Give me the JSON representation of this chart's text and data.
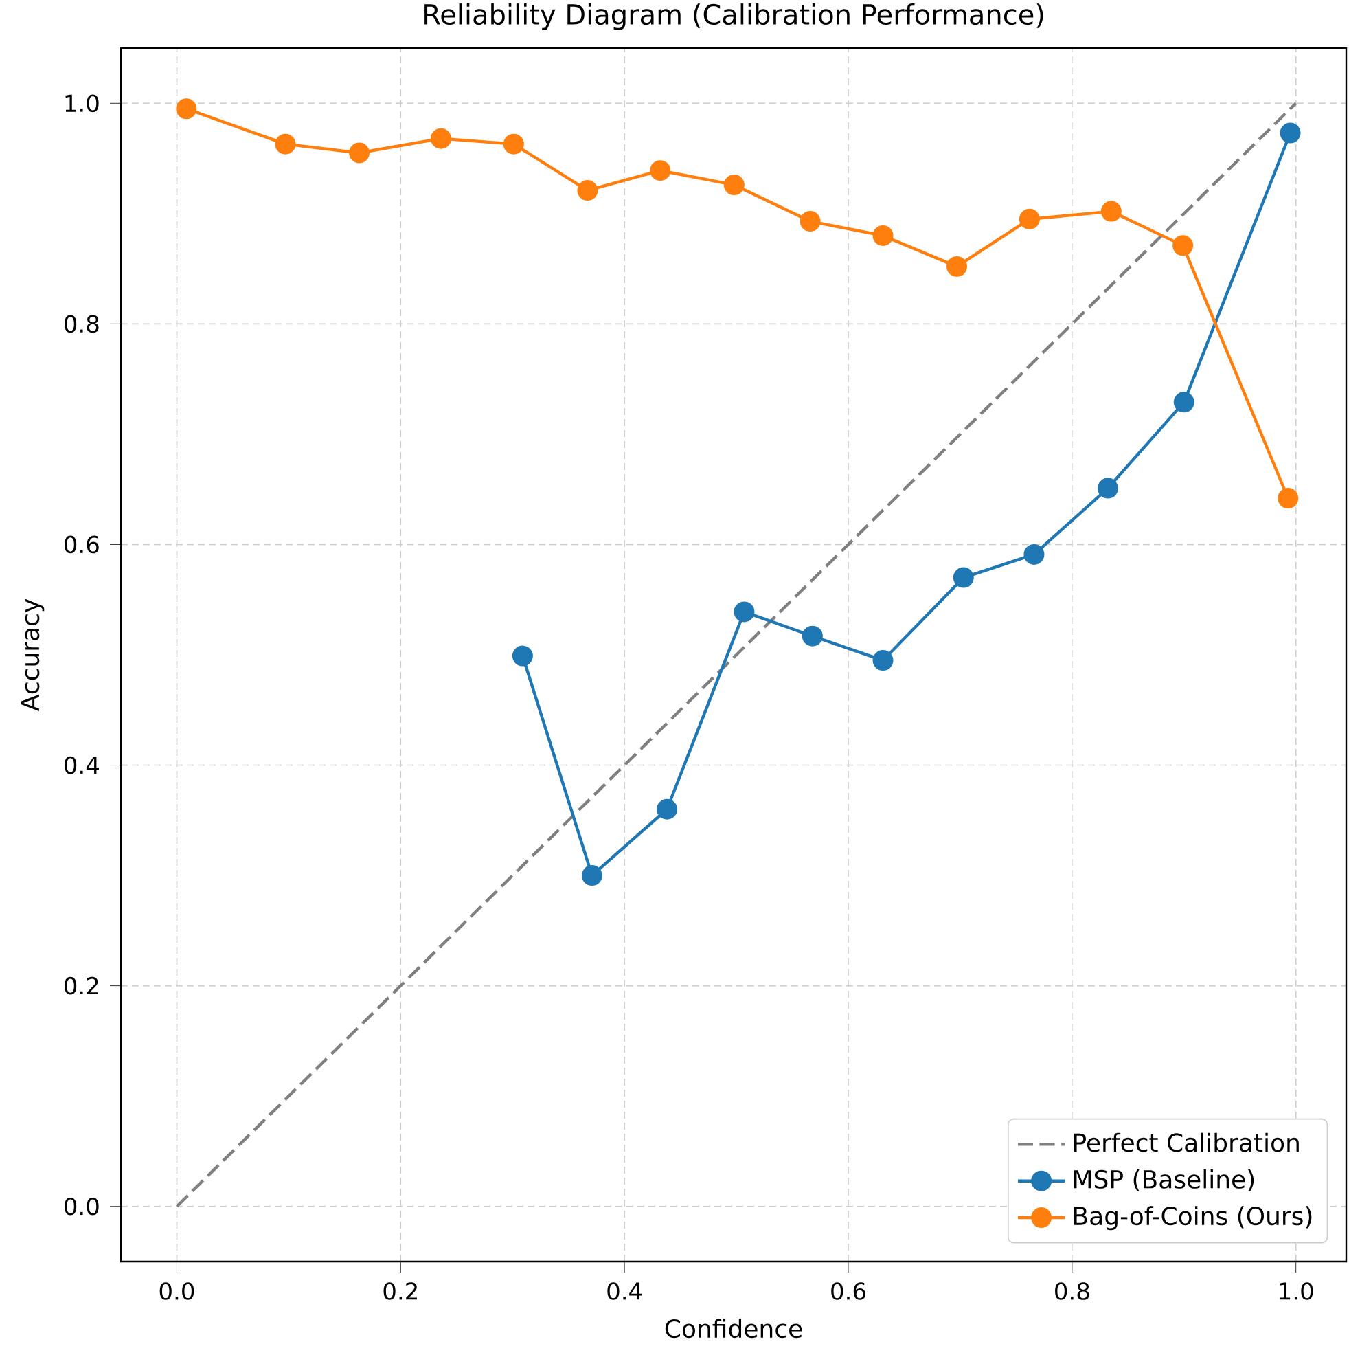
{
  "chart_data": {
    "type": "line",
    "title": "Reliability Diagram (Calibration Performance)",
    "xlabel": "Confidence",
    "ylabel": "Accuracy",
    "xlim": [
      -0.05,
      1.045
    ],
    "ylim": [
      -0.05,
      1.05
    ],
    "xticks": [
      {
        "value": 0,
        "label": "0.0"
      },
      0.2,
      0.4,
      0.6,
      0.8,
      {
        "value": 1,
        "label": "1.0"
      }
    ],
    "yticks": [
      {
        "value": 0,
        "label": "0.0"
      },
      0.2,
      0.4,
      0.6,
      0.8,
      {
        "value": 1,
        "label": "1.0"
      }
    ],
    "grid": true,
    "legend": "bottom right",
    "marker": "circle",
    "series": [
      {
        "name": "Perfect Calibration",
        "color": "#808080",
        "line_style": "dashed",
        "marker": "none",
        "x": [
          0,
          1
        ],
        "values": [
          0,
          1
        ]
      },
      {
        "name": "MSP (Baseline)",
        "color": "#1f77b4",
        "x": [
          0.309,
          0.371,
          0.438,
          0.507,
          0.568,
          0.631,
          0.703,
          0.766,
          0.832,
          0.9,
          0.995
        ],
        "values": [
          0.499,
          0.3,
          0.36,
          0.539,
          0.517,
          0.495,
          0.57,
          0.591,
          0.651,
          0.729,
          0.973
        ]
      },
      {
        "name": "Bag-of-Coins (Ours)",
        "color": "#ff7f0e",
        "x": [
          0.0085,
          0.097,
          0.163,
          0.236,
          0.301,
          0.367,
          0.432,
          0.498,
          0.566,
          0.631,
          0.697,
          0.762,
          0.835,
          0.899,
          0.993
        ],
        "values": [
          0.995,
          0.963,
          0.955,
          0.968,
          0.963,
          0.921,
          0.939,
          0.926,
          0.893,
          0.88,
          0.852,
          0.895,
          0.902,
          0.871,
          0.642
        ]
      }
    ]
  }
}
